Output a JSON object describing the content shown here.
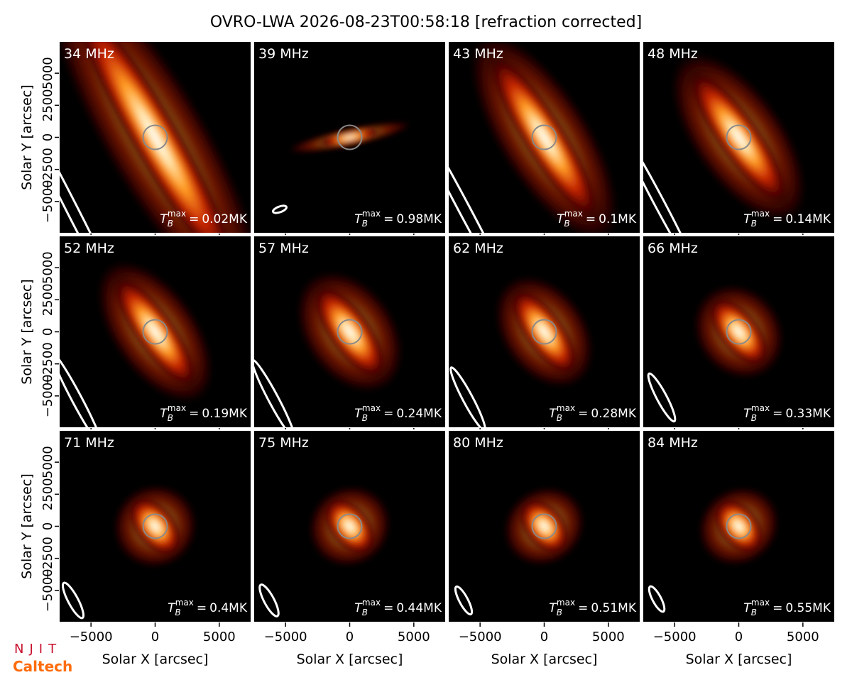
{
  "title": "OVRO-LWA 2026-08-23T00:58:18 [refraction corrected]",
  "x_label": "Solar X [arcsec]",
  "y_label": "Solar Y [arcsec]",
  "xlim": [
    -7500,
    7500
  ],
  "ylim": [
    -7500,
    7500
  ],
  "xticks": [
    {
      "value": -5000,
      "label": "−5000"
    },
    0,
    5000
  ],
  "yticks": [
    {
      "value": -5000,
      "label": "−5000"
    },
    {
      "value": -2500,
      "label": "−2500"
    },
    0,
    2500,
    5000
  ],
  "tb_symbol": {
    "base": "T",
    "sub": "B",
    "sup": "max",
    "eq": "="
  },
  "panels": [
    {
      "freq": "34 MHz",
      "tmax": "0.02MK"
    },
    {
      "freq": "39 MHz",
      "tmax": "0.98MK"
    },
    {
      "freq": "43 MHz",
      "tmax": "0.1MK"
    },
    {
      "freq": "48 MHz",
      "tmax": "0.14MK"
    },
    {
      "freq": "52 MHz",
      "tmax": "0.19MK"
    },
    {
      "freq": "57 MHz",
      "tmax": "0.24MK"
    },
    {
      "freq": "62 MHz",
      "tmax": "0.28MK"
    },
    {
      "freq": "66 MHz",
      "tmax": "0.33MK"
    },
    {
      "freq": "71 MHz",
      "tmax": "0.4MK"
    },
    {
      "freq": "75 MHz",
      "tmax": "0.44MK"
    },
    {
      "freq": "80 MHz",
      "tmax": "0.51MK"
    },
    {
      "freq": "84 MHz",
      "tmax": "0.55MK"
    }
  ],
  "logos": [
    "NJIT",
    "Caltech"
  ]
}
